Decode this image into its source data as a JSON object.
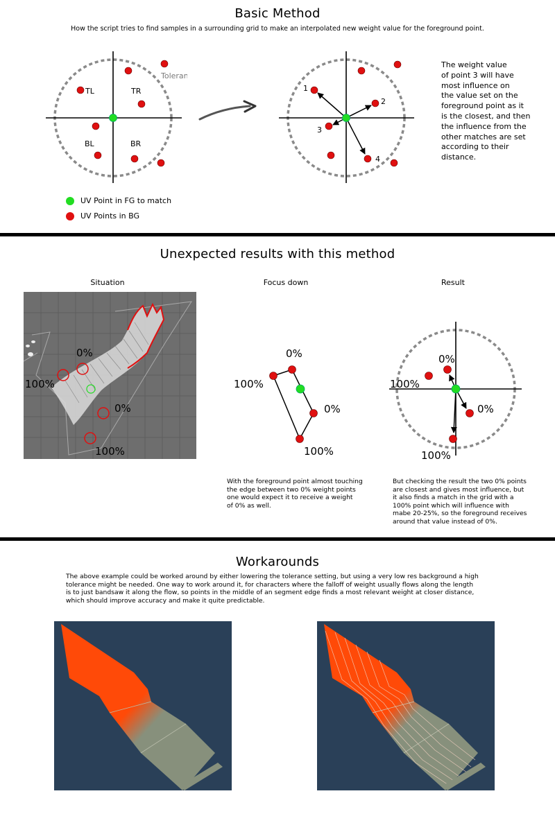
{
  "basic": {
    "title": "Basic Method",
    "subtitle": "How the script tries to find samples in a surrounding grid to make an interpolated new weight value for the foreground point.",
    "tolerance_label": "Tolerance",
    "quadrants": {
      "tl": "TL",
      "tr": "TR",
      "bl": "BL",
      "br": "BR"
    },
    "points": {
      "p1": "1",
      "p2": "2",
      "p3": "3",
      "p4": "4"
    },
    "explanation": "The weight value\nof point 3 will have\nmost influence on\nthe value set on the\nforeground point as it\nis the closest, and then\nthe influence from the\nother matches are set\naccording to their\ndistance.",
    "legend": {
      "fg": "UV Point in FG to match",
      "bg": "UV Points in BG"
    }
  },
  "unexpected": {
    "title": "Unexpected results with this method",
    "col1": "Situation",
    "col2": "Focus down",
    "col3": "Result",
    "pct_zero": "0%",
    "pct_hundred": "100%",
    "note_focus": "With the foreground point almost touching\nthe edge between two 0% weight points\none would expect it to receive a weight\nof 0% as well.",
    "note_result": "But checking the result the two 0% points\nare closest and gives most influence, but\nit also finds a match in the grid with a\n100% point which will influence with\nmabe 20-25%, so the foreground receives\naround that value instead of 0%."
  },
  "workarounds": {
    "title": "Workarounds",
    "body": "The above example could be worked around by either lowering the tolerance setting, but using a very low res background a high\ntolerance might be needed. One way to work around it, for characters where the falloff of weight usually flows along the length\nis to just bandsaw it along the flow, so points in the middle of an segment edge finds a most relevant weight at closer distance,\nwhich should improve accuracy and make it quite predictable."
  },
  "colors": {
    "bg_point": "#e01010",
    "fg_point": "#22dd22",
    "tolerance_ring": "#8a8a8a",
    "viewport_bg": "#2a4058",
    "weight_hot": "#ff4a08",
    "weight_cold": "#87907c",
    "situation_bg": "#6e6e6e"
  }
}
